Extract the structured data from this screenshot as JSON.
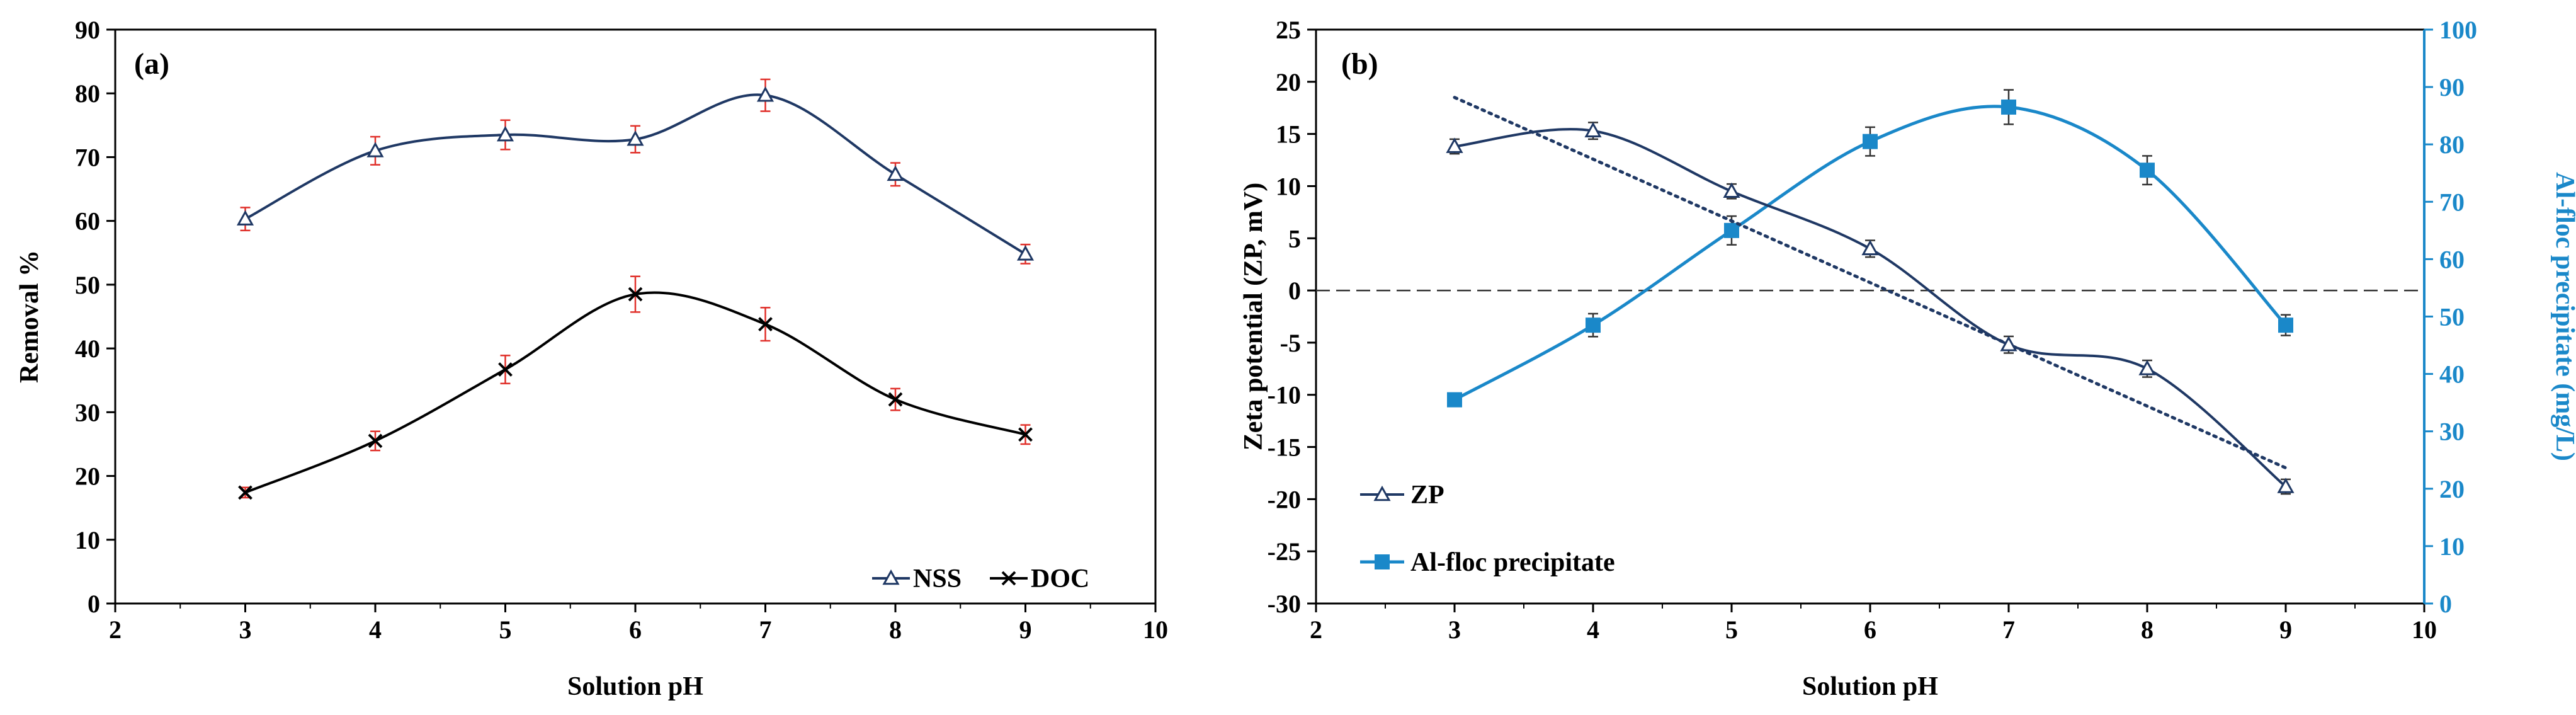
{
  "colors": {
    "nss": "#1F3864",
    "doc": "#000000",
    "zp": "#1F3864",
    "al": "#1A88C9",
    "error": "#E0302A",
    "right_axis": "#1A88C9"
  },
  "chart_data": [
    {
      "type": "line",
      "panel_label": "(a)",
      "xlabel": "Solution pH",
      "ylabel": "Removal %",
      "xlim": [
        2,
        10
      ],
      "ylim": [
        0,
        90
      ],
      "x_ticks": [
        "2",
        "3",
        "4",
        "5",
        "6",
        "7",
        "8",
        "9",
        "10"
      ],
      "y_ticks": [
        "0",
        "10",
        "20",
        "30",
        "40",
        "50",
        "60",
        "70",
        "80",
        "90"
      ],
      "legend_position": "bottom-right",
      "series": [
        {
          "name": "NSS",
          "marker": "triangle",
          "x": [
            3,
            4,
            5,
            6,
            7,
            8,
            9
          ],
          "values": [
            60.3,
            71.0,
            73.5,
            72.8,
            79.7,
            67.3,
            54.8
          ],
          "errors": [
            1.8,
            2.2,
            2.3,
            2.1,
            2.5,
            1.8,
            1.5
          ]
        },
        {
          "name": "DOC",
          "marker": "x",
          "x": [
            3,
            4,
            5,
            6,
            7,
            8,
            9
          ],
          "values": [
            17.4,
            25.5,
            36.7,
            48.5,
            43.8,
            32.0,
            26.5
          ],
          "errors": [
            0.8,
            1.5,
            2.2,
            2.8,
            2.6,
            1.7,
            1.5
          ]
        }
      ]
    },
    {
      "type": "line",
      "panel_label": "(b)",
      "xlabel": "Solution pH",
      "ylabel": "Zeta potential (ZP, mV)",
      "y2label": "Al-floc precipitate (mg/L)",
      "xlim": [
        2,
        10
      ],
      "ylim": [
        -30,
        25
      ],
      "y2lim": [
        0,
        100
      ],
      "x_ticks": [
        "2",
        "3",
        "4",
        "5",
        "6",
        "7",
        "8",
        "9",
        "10"
      ],
      "y_ticks": [
        "-30",
        "-25",
        "-20",
        "-15",
        "-10",
        "-5",
        "0",
        "5",
        "10",
        "15",
        "20",
        "25"
      ],
      "y2_ticks": [
        "0",
        "10",
        "20",
        "30",
        "40",
        "50",
        "60",
        "70",
        "80",
        "90",
        "100"
      ],
      "legend_position": "bottom-left",
      "series": [
        {
          "name": "ZP",
          "axis": "left",
          "marker": "triangle",
          "x": [
            3,
            4,
            5,
            6,
            7,
            8,
            9
          ],
          "values": [
            13.8,
            15.3,
            9.5,
            4.0,
            -5.2,
            -7.5,
            -18.8
          ],
          "errors": [
            0.7,
            0.8,
            0.7,
            0.8,
            0.8,
            0.8,
            0.7
          ]
        },
        {
          "name": "Al-floc precipitate",
          "axis": "right",
          "marker": "square",
          "x": [
            3,
            4,
            5,
            6,
            7,
            8,
            9
          ],
          "values": [
            35.5,
            48.5,
            65.0,
            80.5,
            86.5,
            75.5,
            48.5
          ],
          "errors": [
            1.0,
            2.0,
            2.5,
            2.5,
            3.0,
            2.5,
            1.8
          ]
        }
      ],
      "reference_line": {
        "y": 0,
        "style": "dashed"
      },
      "trendline": {
        "series": "ZP",
        "style": "dotted",
        "x": [
          3,
          9
        ],
        "y": [
          18.5,
          -17.0
        ]
      }
    }
  ]
}
